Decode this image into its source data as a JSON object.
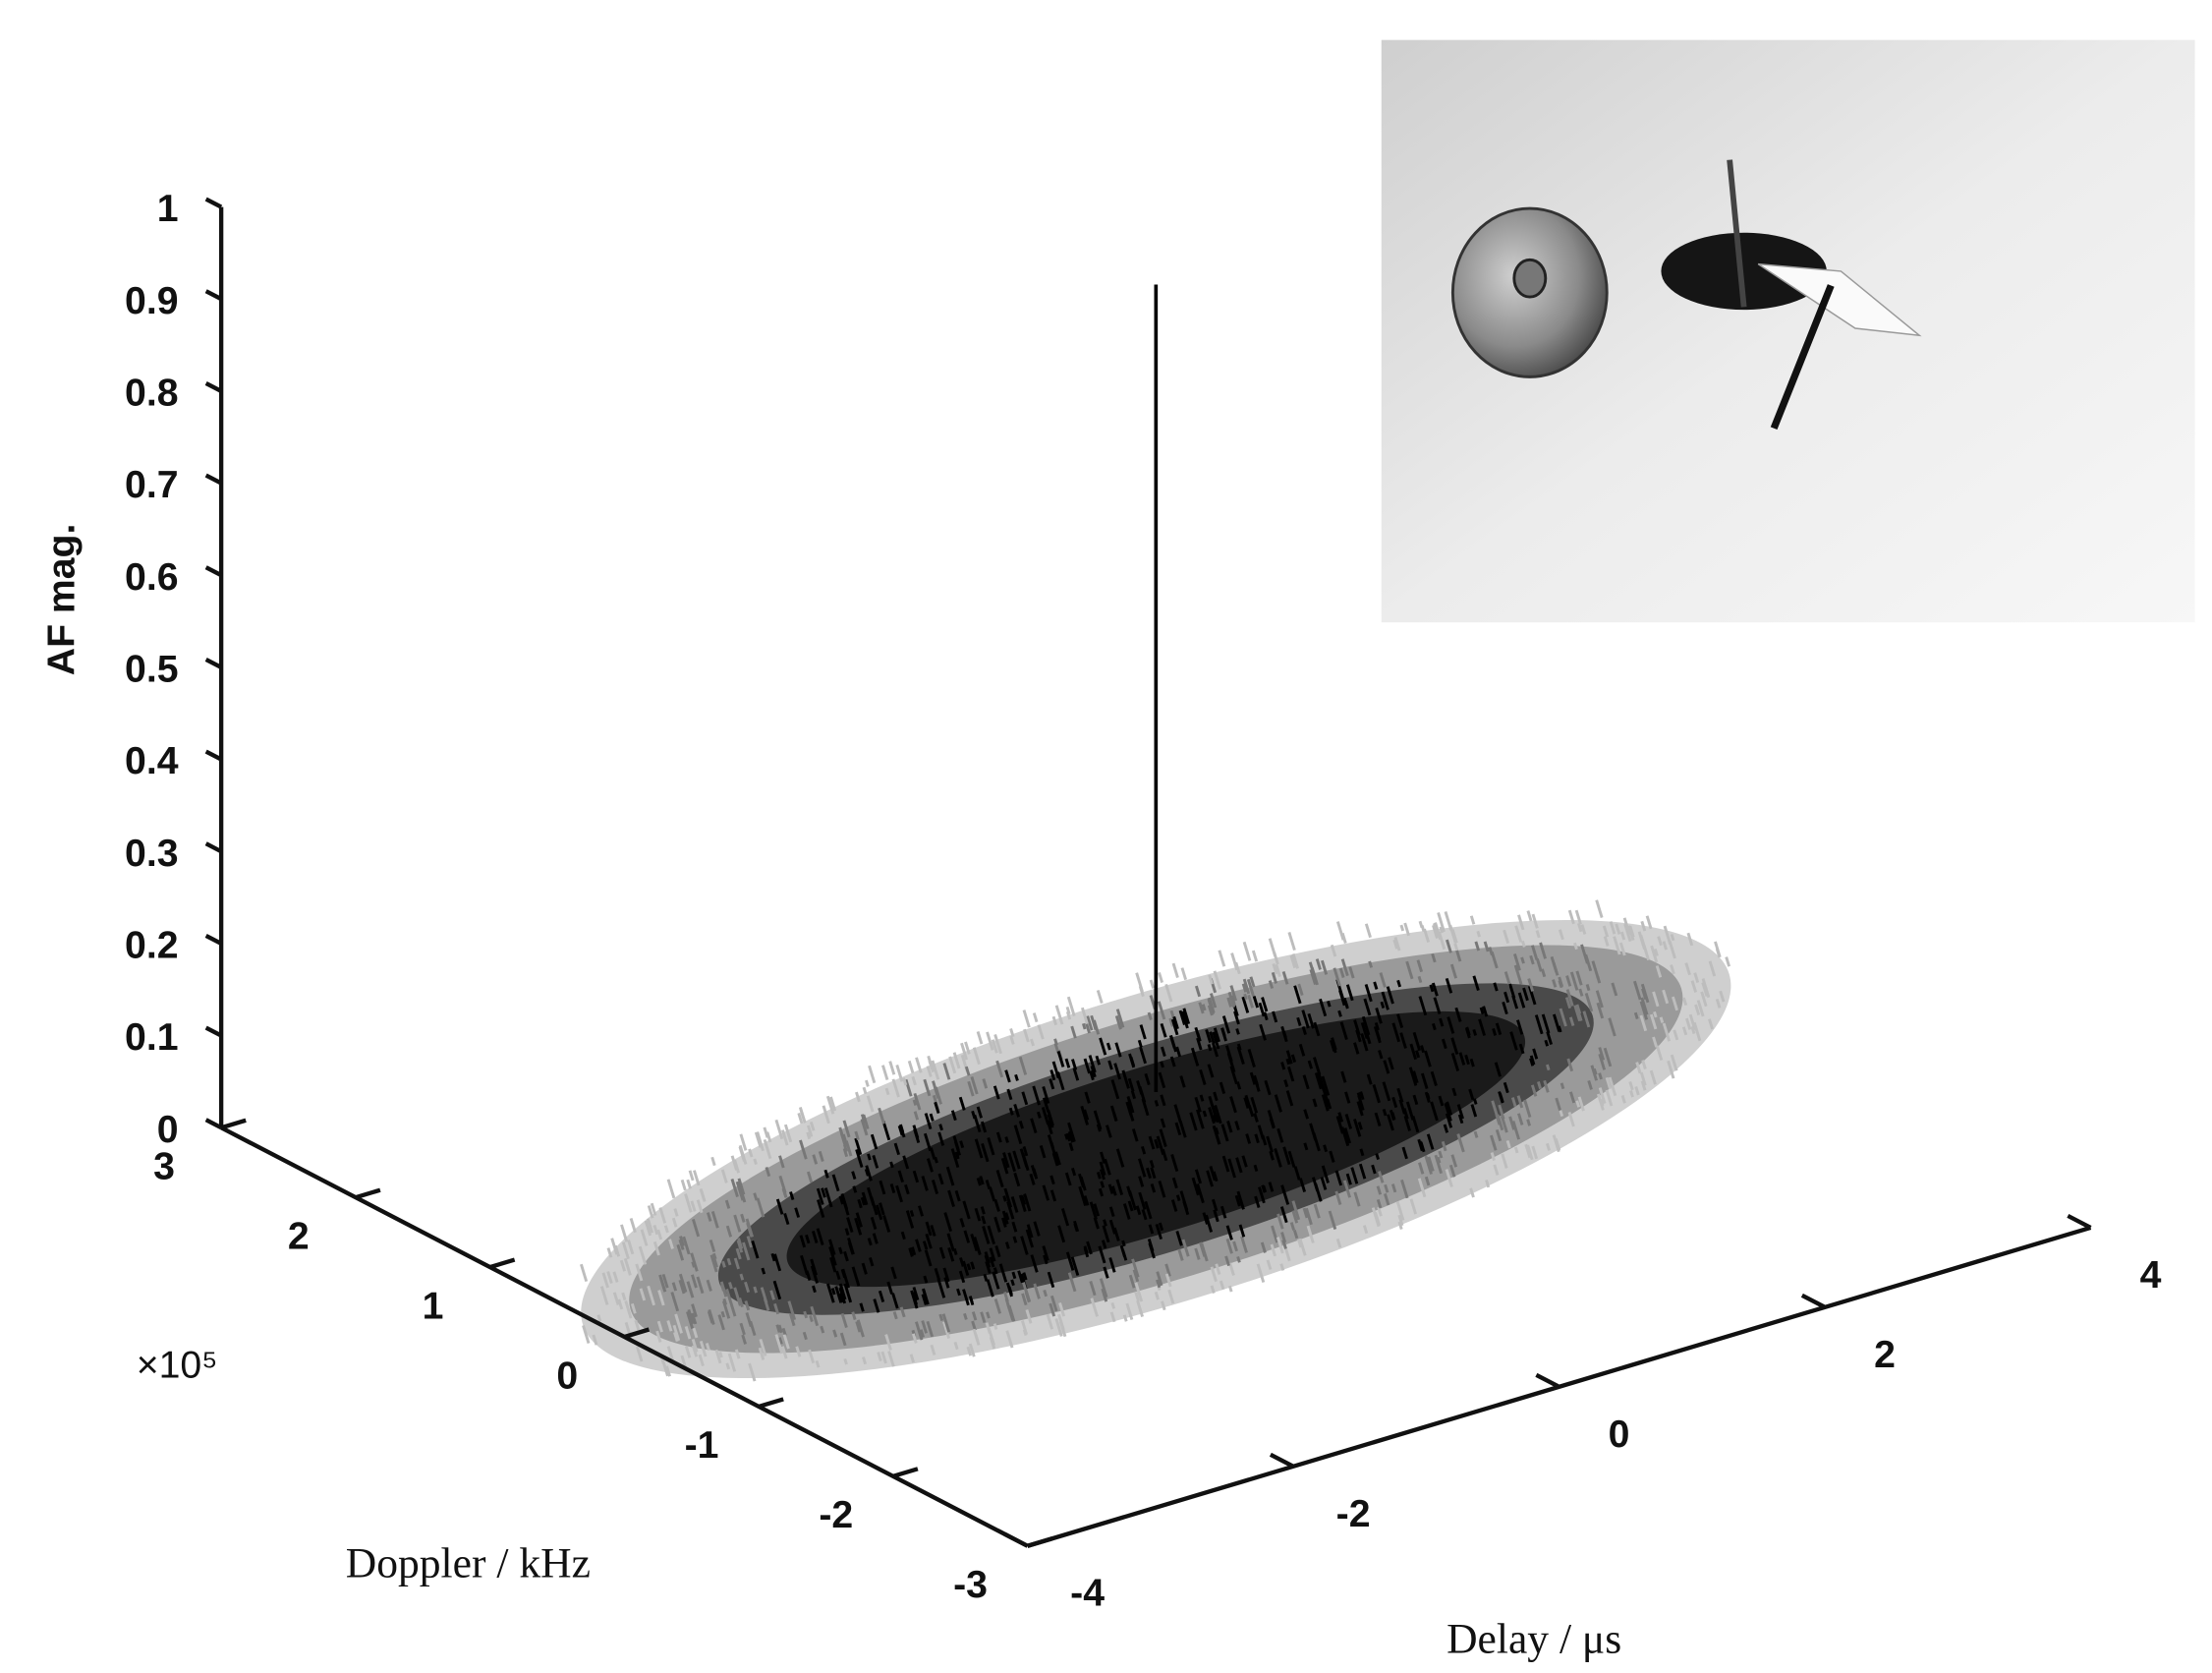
{
  "chart_data": {
    "type": "surface3d",
    "zlabel": "AF mag.",
    "ylabel": "Doppler / kHz",
    "xlabel": "Delay / μs",
    "y_exponent_label": "×10⁵",
    "xlim": [
      -4,
      4
    ],
    "xticks": [
      -4,
      -2,
      0,
      2,
      4
    ],
    "ylim": [
      -3,
      3
    ],
    "yticks": [
      -3,
      -2,
      -1,
      0,
      1,
      2,
      3
    ],
    "zlim": [
      0,
      1
    ],
    "zticks": [
      0,
      0.1,
      0.2,
      0.3,
      0.4,
      0.5,
      0.6,
      0.7,
      0.8,
      0.9,
      1
    ],
    "peak": {
      "x": 0,
      "y": 0,
      "z": 0.97
    },
    "color": "#000000"
  }
}
